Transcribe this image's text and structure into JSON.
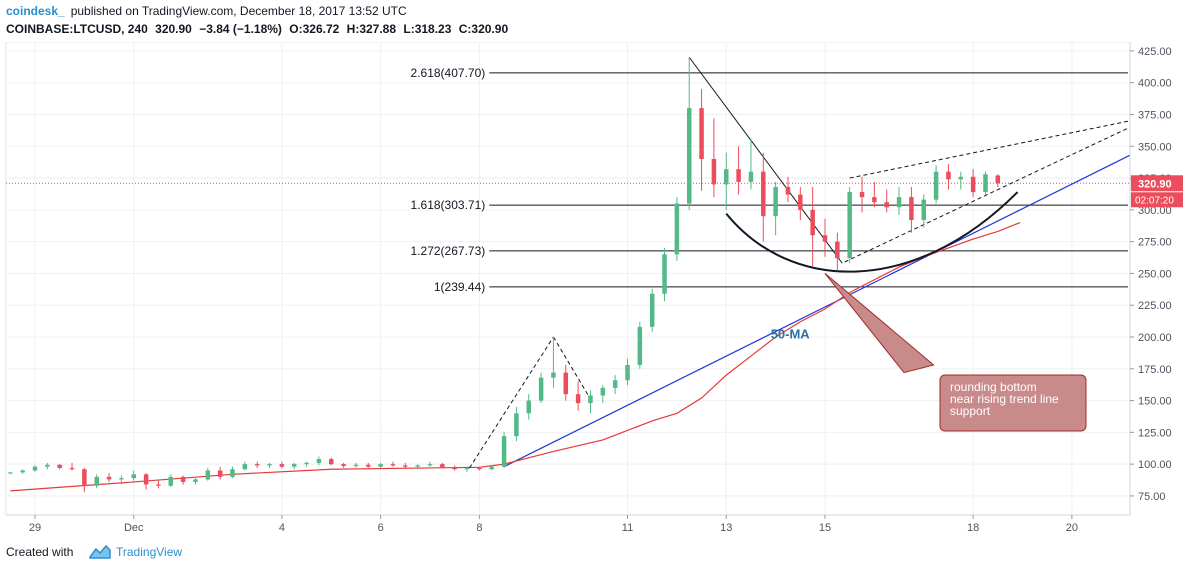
{
  "header": {
    "brand": "coindesk_",
    "published": "published on TradingView.com, December 18, 2017 13:52 UTC",
    "symbol": "COINBASE:LTCUSD, 240",
    "last": "320.90",
    "change": "−3.84 (−1.18%)",
    "open": "O:326.72",
    "high": "H:327.88",
    "low": "L:318.23",
    "close": "C:320.90"
  },
  "footer": {
    "created_with": "Created with",
    "brand": "TradingView"
  },
  "colors": {
    "up": "#53b987",
    "down": "#eb4d5c",
    "ma": "#e53935",
    "trend": "#2036d8",
    "annotation_fill": "#c98a8a",
    "annotation_border": "#a02b2b"
  },
  "chart_data": {
    "type": "candlestick",
    "y_axis": {
      "min": 60,
      "max": 432,
      "ticks": [
        75,
        100,
        125,
        150,
        175,
        200,
        225,
        250,
        275,
        300,
        325,
        350,
        375,
        400,
        425
      ]
    },
    "x_axis": {
      "min": 28.5,
      "max": 21.1,
      "ticks": [
        {
          "label": "29",
          "x": 29
        },
        {
          "label": "Dec",
          "x": 31
        },
        {
          "label": "4",
          "x": 34
        },
        {
          "label": "6",
          "x": 36
        },
        {
          "label": "8",
          "x": 38
        },
        {
          "label": "11",
          "x": 41
        },
        {
          "label": "13",
          "x": 43
        },
        {
          "label": "15",
          "x": 45
        },
        {
          "label": "18",
          "x": 48
        },
        {
          "label": "20",
          "x": 50
        }
      ]
    },
    "last_price": "320.90",
    "countdown": "02:07:20",
    "fib_levels": [
      {
        "label": "2.618(407.70)",
        "value": 407.7
      },
      {
        "label": "1.618(303.71)",
        "value": 303.71
      },
      {
        "label": "1.272(267.73)",
        "value": 267.73
      },
      {
        "label": "1(239.44)",
        "value": 239.44
      }
    ],
    "annotations": {
      "ma_label": "50-MA",
      "callout": [
        "rounding bottom",
        "near rising trend line",
        "support"
      ]
    },
    "candles": [
      [
        28.5,
        93,
        94,
        92,
        93.5
      ],
      [
        28.75,
        93.5,
        96,
        92.5,
        95
      ],
      [
        29.0,
        95,
        99,
        94,
        98
      ],
      [
        29.25,
        98,
        101,
        96,
        99.5
      ],
      [
        29.5,
        99.5,
        100,
        96,
        97
      ],
      [
        29.75,
        97,
        101,
        95,
        96
      ],
      [
        30.0,
        96,
        97,
        78,
        83
      ],
      [
        30.25,
        83,
        92,
        81,
        90
      ],
      [
        30.5,
        90,
        93,
        86,
        88
      ],
      [
        30.75,
        88,
        91,
        84,
        89
      ],
      [
        31.0,
        89,
        95,
        87,
        92
      ],
      [
        31.25,
        92,
        93,
        80,
        84
      ],
      [
        31.5,
        84,
        88,
        81,
        83
      ],
      [
        31.75,
        83,
        92,
        82,
        90
      ],
      [
        32.0,
        90,
        91,
        84,
        86
      ],
      [
        32.25,
        86,
        89,
        84,
        88
      ],
      [
        32.5,
        88,
        97,
        87,
        95
      ],
      [
        32.75,
        95,
        98,
        88,
        90
      ],
      [
        33.0,
        90,
        98,
        89,
        96
      ],
      [
        33.25,
        96,
        102,
        95,
        100
      ],
      [
        33.5,
        100,
        102,
        97,
        99
      ],
      [
        33.75,
        99,
        101,
        97,
        100
      ],
      [
        34.0,
        100,
        102,
        97,
        98
      ],
      [
        34.25,
        98,
        101,
        96,
        100
      ],
      [
        34.5,
        100,
        102,
        98,
        101
      ],
      [
        34.75,
        101,
        106,
        99,
        104
      ],
      [
        35.0,
        104,
        105,
        99,
        100
      ],
      [
        35.25,
        100,
        101,
        97,
        98.5
      ],
      [
        35.5,
        98.5,
        101,
        97,
        99.5
      ],
      [
        35.75,
        99.5,
        101,
        97,
        98
      ],
      [
        36.0,
        98,
        101,
        97,
        100
      ],
      [
        36.25,
        100,
        102,
        98,
        99
      ],
      [
        36.5,
        99,
        101,
        97,
        98
      ],
      [
        36.75,
        98,
        100,
        96,
        99
      ],
      [
        37.0,
        99,
        102,
        98,
        100
      ],
      [
        37.25,
        100,
        101,
        97,
        97.5
      ],
      [
        37.5,
        97.5,
        99,
        95,
        96
      ],
      [
        37.75,
        96,
        98,
        94,
        97
      ],
      [
        38.0,
        97,
        98,
        95,
        96
      ],
      [
        38.25,
        96,
        99,
        95,
        98
      ],
      [
        38.5,
        98,
        125,
        97,
        122
      ],
      [
        38.75,
        122,
        145,
        118,
        140
      ],
      [
        39.0,
        140,
        155,
        135,
        150
      ],
      [
        39.25,
        150,
        172,
        148,
        168
      ],
      [
        39.5,
        168,
        200,
        160,
        172
      ],
      [
        39.75,
        172,
        178,
        150,
        155
      ],
      [
        40.0,
        155,
        165,
        142,
        148
      ],
      [
        40.25,
        148,
        158,
        140,
        154
      ],
      [
        40.5,
        154,
        162,
        148,
        160
      ],
      [
        40.75,
        160,
        170,
        155,
        166
      ],
      [
        41.0,
        166,
        183,
        162,
        178
      ],
      [
        41.25,
        178,
        212,
        175,
        208
      ],
      [
        41.5,
        208,
        238,
        204,
        234
      ],
      [
        41.75,
        234,
        270,
        228,
        265
      ],
      [
        42.0,
        265,
        310,
        260,
        305
      ],
      [
        42.25,
        305,
        420,
        300,
        380
      ],
      [
        42.5,
        380,
        395,
        315,
        340
      ],
      [
        42.75,
        340,
        372,
        310,
        320
      ],
      [
        43.0,
        320,
        345,
        300,
        332
      ],
      [
        43.25,
        332,
        350,
        312,
        322
      ],
      [
        43.5,
        322,
        356,
        316,
        330
      ],
      [
        43.75,
        330,
        345,
        275,
        295
      ],
      [
        44.0,
        295,
        322,
        280,
        318
      ],
      [
        44.25,
        318,
        326,
        306,
        312
      ],
      [
        44.5,
        312,
        318,
        292,
        300
      ],
      [
        44.75,
        300,
        318,
        256,
        280
      ],
      [
        45.0,
        280,
        293,
        263,
        275
      ],
      [
        45.25,
        275,
        282,
        252,
        262
      ],
      [
        45.5,
        262,
        318,
        258,
        314
      ],
      [
        45.75,
        314,
        326,
        298,
        310
      ],
      [
        46.0,
        310,
        322,
        302,
        306
      ],
      [
        46.25,
        306,
        316,
        298,
        302
      ],
      [
        46.5,
        302,
        318,
        296,
        310
      ],
      [
        46.75,
        310,
        318,
        282,
        292
      ],
      [
        47.0,
        292,
        312,
        286,
        308
      ],
      [
        47.25,
        308,
        335,
        305,
        330
      ],
      [
        47.5,
        330,
        336,
        316,
        324
      ],
      [
        47.75,
        324,
        330,
        316,
        326
      ],
      [
        48.0,
        326,
        332,
        310,
        314
      ],
      [
        48.25,
        314,
        330,
        312,
        328
      ],
      [
        48.5,
        327,
        328,
        318,
        320.9
      ]
    ],
    "ma_line": [
      [
        28.5,
        79
      ],
      [
        31,
        86
      ],
      [
        33,
        92
      ],
      [
        35,
        96
      ],
      [
        37,
        97
      ],
      [
        38,
        97.5
      ],
      [
        38.5,
        100
      ],
      [
        39.5,
        110
      ],
      [
        40.5,
        119
      ],
      [
        41.5,
        134
      ],
      [
        42,
        140
      ],
      [
        42.5,
        152
      ],
      [
        43,
        170
      ],
      [
        43.5,
        185
      ],
      [
        44,
        200
      ],
      [
        44.5,
        212
      ],
      [
        45,
        222
      ],
      [
        45.5,
        235
      ],
      [
        46,
        245
      ],
      [
        46.5,
        255
      ],
      [
        47,
        263
      ],
      [
        47.5,
        270
      ],
      [
        48,
        277
      ],
      [
        48.5,
        283
      ],
      [
        48.95,
        290
      ]
    ]
  }
}
